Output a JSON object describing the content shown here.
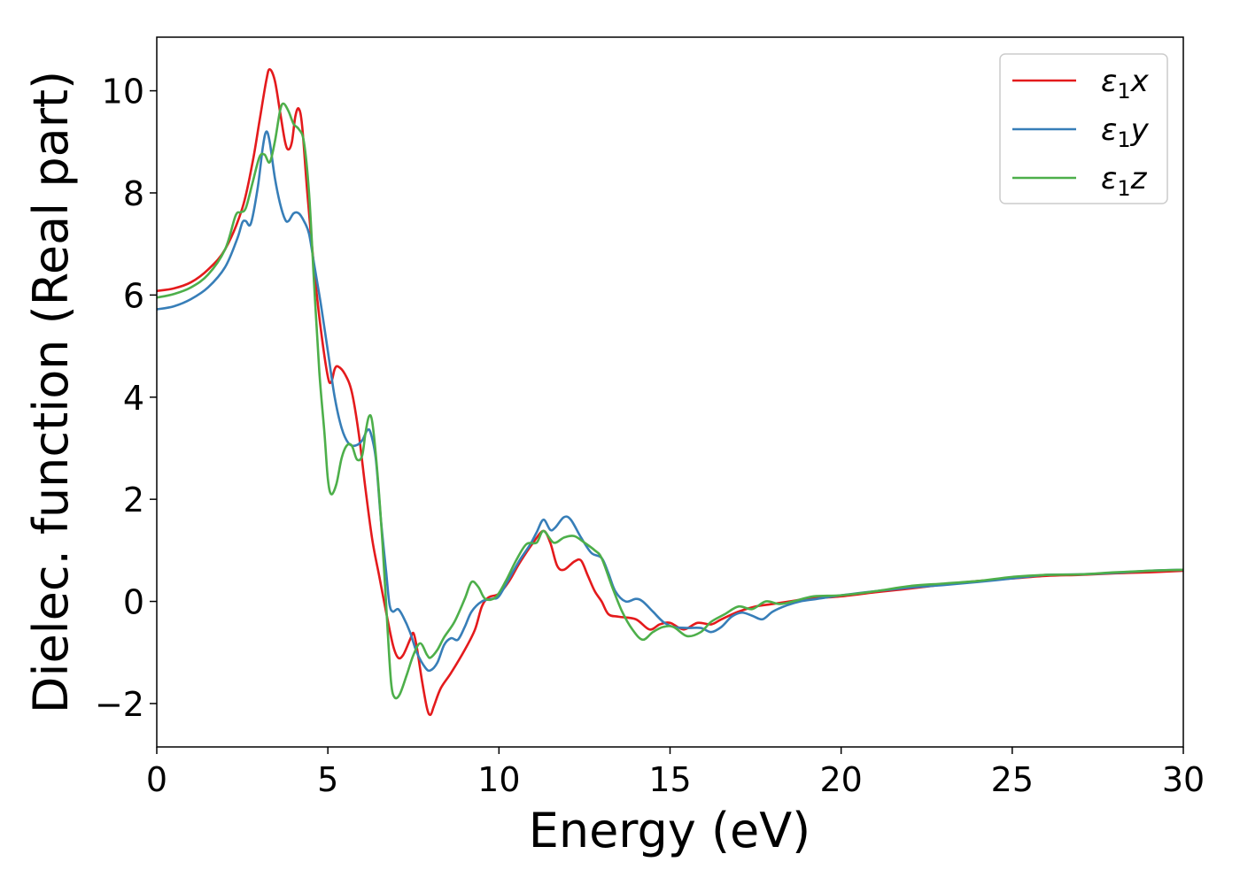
{
  "chart_data": {
    "type": "line",
    "title": "",
    "xlabel": "Energy (eV)",
    "ylabel": "Dielec. function (Real part)",
    "xlim": [
      0,
      30
    ],
    "ylim": [
      -2.85,
      11.05
    ],
    "xticks": [
      0,
      5,
      10,
      15,
      20,
      25,
      30
    ],
    "xtick_labels": [
      "0",
      "5",
      "10",
      "15",
      "20",
      "25",
      "30"
    ],
    "yticks": [
      -2,
      0,
      2,
      4,
      6,
      8,
      10
    ],
    "ytick_labels": [
      "−2",
      "0",
      "2",
      "4",
      "6",
      "8",
      "10"
    ],
    "grid": false,
    "legend_position": "top-right",
    "series": [
      {
        "name": "ε₁x",
        "legend_main": "ε",
        "legend_sub": "1",
        "legend_tail": "x",
        "color": "#e41a1c",
        "points": [
          [
            0,
            6.08
          ],
          [
            0.5,
            6.13
          ],
          [
            1,
            6.25
          ],
          [
            1.5,
            6.5
          ],
          [
            2,
            6.9
          ],
          [
            2.5,
            7.7
          ],
          [
            2.8,
            8.6
          ],
          [
            3,
            9.4
          ],
          [
            3.2,
            10.2
          ],
          [
            3.3,
            10.42
          ],
          [
            3.45,
            10.2
          ],
          [
            3.6,
            9.6
          ],
          [
            3.75,
            9.0
          ],
          [
            3.85,
            8.85
          ],
          [
            3.95,
            9.0
          ],
          [
            4.05,
            9.5
          ],
          [
            4.15,
            9.65
          ],
          [
            4.25,
            9.3
          ],
          [
            4.4,
            8.0
          ],
          [
            4.6,
            6.5
          ],
          [
            4.8,
            5.3
          ],
          [
            5.0,
            4.4
          ],
          [
            5.1,
            4.3
          ],
          [
            5.2,
            4.55
          ],
          [
            5.3,
            4.6
          ],
          [
            5.5,
            4.45
          ],
          [
            5.7,
            4.1
          ],
          [
            5.9,
            3.3
          ],
          [
            6.1,
            2.2
          ],
          [
            6.3,
            1.2
          ],
          [
            6.5,
            0.5
          ],
          [
            6.7,
            -0.2
          ],
          [
            6.9,
            -0.85
          ],
          [
            7.05,
            -1.1
          ],
          [
            7.2,
            -1.05
          ],
          [
            7.4,
            -0.75
          ],
          [
            7.5,
            -0.62
          ],
          [
            7.6,
            -0.9
          ],
          [
            7.75,
            -1.55
          ],
          [
            7.9,
            -2.1
          ],
          [
            8.0,
            -2.22
          ],
          [
            8.1,
            -2.05
          ],
          [
            8.3,
            -1.7
          ],
          [
            8.6,
            -1.4
          ],
          [
            9.0,
            -0.95
          ],
          [
            9.3,
            -0.55
          ],
          [
            9.5,
            -0.1
          ],
          [
            9.7,
            0.08
          ],
          [
            10.0,
            0.15
          ],
          [
            10.3,
            0.4
          ],
          [
            10.6,
            0.75
          ],
          [
            11.0,
            1.15
          ],
          [
            11.3,
            1.38
          ],
          [
            11.5,
            1.15
          ],
          [
            11.7,
            0.7
          ],
          [
            11.9,
            0.62
          ],
          [
            12.2,
            0.78
          ],
          [
            12.4,
            0.8
          ],
          [
            12.6,
            0.5
          ],
          [
            12.8,
            0.2
          ],
          [
            13.0,
            0.0
          ],
          [
            13.2,
            -0.25
          ],
          [
            13.5,
            -0.3
          ],
          [
            14.0,
            -0.35
          ],
          [
            14.4,
            -0.55
          ],
          [
            14.7,
            -0.45
          ],
          [
            15.0,
            -0.42
          ],
          [
            15.4,
            -0.55
          ],
          [
            15.8,
            -0.42
          ],
          [
            16.2,
            -0.45
          ],
          [
            16.5,
            -0.35
          ],
          [
            17.0,
            -0.2
          ],
          [
            17.5,
            -0.1
          ],
          [
            18.0,
            -0.05
          ],
          [
            18.5,
            0.0
          ],
          [
            19.0,
            0.05
          ],
          [
            20.0,
            0.1
          ],
          [
            21.0,
            0.18
          ],
          [
            22.0,
            0.25
          ],
          [
            23.0,
            0.33
          ],
          [
            24.0,
            0.4
          ],
          [
            25.0,
            0.45
          ],
          [
            26.0,
            0.5
          ],
          [
            27.0,
            0.52
          ],
          [
            28.0,
            0.55
          ],
          [
            29.0,
            0.57
          ],
          [
            30.0,
            0.6
          ]
        ]
      },
      {
        "name": "ε₁y",
        "legend_main": "ε",
        "legend_sub": "1",
        "legend_tail": "y",
        "color": "#377eb8",
        "points": [
          [
            0,
            5.72
          ],
          [
            0.5,
            5.78
          ],
          [
            1,
            5.92
          ],
          [
            1.5,
            6.15
          ],
          [
            2,
            6.55
          ],
          [
            2.35,
            7.1
          ],
          [
            2.5,
            7.42
          ],
          [
            2.6,
            7.45
          ],
          [
            2.75,
            7.4
          ],
          [
            2.95,
            8.1
          ],
          [
            3.1,
            8.9
          ],
          [
            3.2,
            9.2
          ],
          [
            3.3,
            9.0
          ],
          [
            3.45,
            8.3
          ],
          [
            3.6,
            7.8
          ],
          [
            3.75,
            7.48
          ],
          [
            3.85,
            7.45
          ],
          [
            4.0,
            7.6
          ],
          [
            4.15,
            7.6
          ],
          [
            4.3,
            7.45
          ],
          [
            4.45,
            7.2
          ],
          [
            4.6,
            6.6
          ],
          [
            4.8,
            5.8
          ],
          [
            5.0,
            4.9
          ],
          [
            5.2,
            4.0
          ],
          [
            5.4,
            3.4
          ],
          [
            5.6,
            3.1
          ],
          [
            5.8,
            3.05
          ],
          [
            6.0,
            3.15
          ],
          [
            6.15,
            3.35
          ],
          [
            6.25,
            3.3
          ],
          [
            6.4,
            2.8
          ],
          [
            6.55,
            1.6
          ],
          [
            6.7,
            0.6
          ],
          [
            6.8,
            -0.05
          ],
          [
            6.9,
            -0.2
          ],
          [
            7.05,
            -0.15
          ],
          [
            7.2,
            -0.3
          ],
          [
            7.4,
            -0.6
          ],
          [
            7.6,
            -1.0
          ],
          [
            7.85,
            -1.3
          ],
          [
            8.0,
            -1.35
          ],
          [
            8.2,
            -1.2
          ],
          [
            8.4,
            -0.85
          ],
          [
            8.6,
            -0.72
          ],
          [
            8.8,
            -0.75
          ],
          [
            9.0,
            -0.5
          ],
          [
            9.2,
            -0.2
          ],
          [
            9.5,
            0.0
          ],
          [
            9.8,
            0.05
          ],
          [
            10.0,
            0.1
          ],
          [
            10.3,
            0.45
          ],
          [
            10.6,
            0.8
          ],
          [
            10.9,
            1.1
          ],
          [
            11.1,
            1.35
          ],
          [
            11.3,
            1.6
          ],
          [
            11.5,
            1.4
          ],
          [
            11.65,
            1.45
          ],
          [
            11.9,
            1.65
          ],
          [
            12.1,
            1.6
          ],
          [
            12.4,
            1.25
          ],
          [
            12.7,
            0.95
          ],
          [
            13.0,
            0.85
          ],
          [
            13.2,
            0.55
          ],
          [
            13.4,
            0.2
          ],
          [
            13.7,
            0.0
          ],
          [
            14.0,
            0.05
          ],
          [
            14.2,
            0.0
          ],
          [
            14.5,
            -0.2
          ],
          [
            14.8,
            -0.4
          ],
          [
            15.1,
            -0.5
          ],
          [
            15.5,
            -0.52
          ],
          [
            15.9,
            -0.52
          ],
          [
            16.2,
            -0.6
          ],
          [
            16.5,
            -0.5
          ],
          [
            16.8,
            -0.3
          ],
          [
            17.1,
            -0.22
          ],
          [
            17.4,
            -0.28
          ],
          [
            17.7,
            -0.35
          ],
          [
            18.0,
            -0.2
          ],
          [
            18.4,
            -0.08
          ],
          [
            18.8,
            0.0
          ],
          [
            19.3,
            0.05
          ],
          [
            20.0,
            0.12
          ],
          [
            21.0,
            0.2
          ],
          [
            22.0,
            0.27
          ],
          [
            23.0,
            0.32
          ],
          [
            24.0,
            0.38
          ],
          [
            25.0,
            0.45
          ],
          [
            26.0,
            0.52
          ],
          [
            27.0,
            0.53
          ],
          [
            28.0,
            0.56
          ],
          [
            29.0,
            0.6
          ],
          [
            30.0,
            0.62
          ]
        ]
      },
      {
        "name": "ε₁z",
        "legend_main": "ε",
        "legend_sub": "1",
        "legend_tail": "z",
        "color": "#4daf4a",
        "points": [
          [
            0,
            5.95
          ],
          [
            0.5,
            6.02
          ],
          [
            1,
            6.15
          ],
          [
            1.5,
            6.4
          ],
          [
            2,
            6.9
          ],
          [
            2.3,
            7.55
          ],
          [
            2.45,
            7.62
          ],
          [
            2.6,
            7.7
          ],
          [
            2.8,
            8.2
          ],
          [
            3.0,
            8.7
          ],
          [
            3.15,
            8.75
          ],
          [
            3.3,
            8.6
          ],
          [
            3.45,
            9.0
          ],
          [
            3.6,
            9.6
          ],
          [
            3.7,
            9.75
          ],
          [
            3.85,
            9.6
          ],
          [
            4.0,
            9.35
          ],
          [
            4.15,
            9.25
          ],
          [
            4.3,
            9.0
          ],
          [
            4.45,
            8.0
          ],
          [
            4.6,
            6.2
          ],
          [
            4.75,
            4.5
          ],
          [
            4.9,
            3.3
          ],
          [
            5.0,
            2.4
          ],
          [
            5.1,
            2.1
          ],
          [
            5.25,
            2.3
          ],
          [
            5.4,
            2.8
          ],
          [
            5.55,
            3.05
          ],
          [
            5.7,
            3.05
          ],
          [
            5.85,
            2.78
          ],
          [
            6.0,
            2.85
          ],
          [
            6.1,
            3.3
          ],
          [
            6.2,
            3.62
          ],
          [
            6.3,
            3.5
          ],
          [
            6.45,
            2.5
          ],
          [
            6.6,
            1.1
          ],
          [
            6.75,
            -0.6
          ],
          [
            6.85,
            -1.6
          ],
          [
            6.95,
            -1.88
          ],
          [
            7.1,
            -1.82
          ],
          [
            7.3,
            -1.45
          ],
          [
            7.5,
            -1.05
          ],
          [
            7.7,
            -0.82
          ],
          [
            7.9,
            -1.05
          ],
          [
            8.0,
            -1.1
          ],
          [
            8.2,
            -0.95
          ],
          [
            8.4,
            -0.7
          ],
          [
            8.7,
            -0.4
          ],
          [
            9.0,
            0.05
          ],
          [
            9.2,
            0.38
          ],
          [
            9.4,
            0.28
          ],
          [
            9.6,
            0.05
          ],
          [
            9.9,
            0.08
          ],
          [
            10.2,
            0.4
          ],
          [
            10.5,
            0.8
          ],
          [
            10.8,
            1.12
          ],
          [
            11.1,
            1.15
          ],
          [
            11.3,
            1.38
          ],
          [
            11.6,
            1.15
          ],
          [
            11.9,
            1.25
          ],
          [
            12.2,
            1.28
          ],
          [
            12.5,
            1.15
          ],
          [
            12.8,
            1.0
          ],
          [
            13.0,
            0.85
          ],
          [
            13.3,
            0.3
          ],
          [
            13.6,
            -0.2
          ],
          [
            13.9,
            -0.55
          ],
          [
            14.2,
            -0.75
          ],
          [
            14.5,
            -0.6
          ],
          [
            14.8,
            -0.5
          ],
          [
            15.1,
            -0.5
          ],
          [
            15.5,
            -0.68
          ],
          [
            15.9,
            -0.6
          ],
          [
            16.2,
            -0.4
          ],
          [
            16.6,
            -0.25
          ],
          [
            17.0,
            -0.1
          ],
          [
            17.4,
            -0.15
          ],
          [
            17.8,
            0.0
          ],
          [
            18.2,
            -0.05
          ],
          [
            18.6,
            0.0
          ],
          [
            19.2,
            0.1
          ],
          [
            20.0,
            0.12
          ],
          [
            21.0,
            0.2
          ],
          [
            22.0,
            0.3
          ],
          [
            23.0,
            0.35
          ],
          [
            24.0,
            0.4
          ],
          [
            25.0,
            0.48
          ],
          [
            26.0,
            0.52
          ],
          [
            27.0,
            0.53
          ],
          [
            28.0,
            0.57
          ],
          [
            29.0,
            0.6
          ],
          [
            30.0,
            0.62
          ]
        ]
      }
    ]
  }
}
